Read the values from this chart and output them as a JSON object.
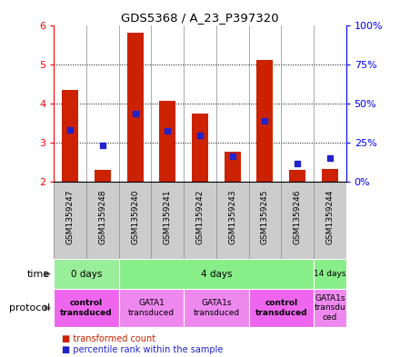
{
  "title": "GDS5368 / A_23_P397320",
  "samples": [
    "GSM1359247",
    "GSM1359248",
    "GSM1359240",
    "GSM1359241",
    "GSM1359242",
    "GSM1359243",
    "GSM1359245",
    "GSM1359246",
    "GSM1359244"
  ],
  "transformed_counts": [
    4.35,
    2.32,
    5.8,
    4.08,
    3.75,
    2.78,
    5.1,
    2.31,
    2.33
  ],
  "bar_base": 2.0,
  "percentile_values": [
    3.32,
    2.93,
    3.74,
    3.3,
    3.19,
    2.65,
    3.55,
    2.48,
    2.62
  ],
  "ylim_left": [
    2,
    6
  ],
  "ylim_right": [
    0,
    100
  ],
  "yticks_left": [
    2,
    3,
    4,
    5,
    6
  ],
  "yticks_right": [
    0,
    25,
    50,
    75,
    100
  ],
  "ytick_labels_right": [
    "0%",
    "25%",
    "50%",
    "75%",
    "100%"
  ],
  "bar_color": "#cc2200",
  "percentile_color": "#2222cc",
  "time_groups": [
    {
      "label": "0 days",
      "start": 0,
      "end": 2,
      "color": "#99ee99"
    },
    {
      "label": "4 days",
      "start": 2,
      "end": 8,
      "color": "#88ee88"
    },
    {
      "label": "14 days",
      "start": 8,
      "end": 9,
      "color": "#88ee88"
    }
  ],
  "protocol_groups": [
    {
      "label": "control\ntransduced",
      "start": 0,
      "end": 2,
      "color": "#ee66ee",
      "bold": true
    },
    {
      "label": "GATA1\ntransduced",
      "start": 2,
      "end": 4,
      "color": "#ee88ee",
      "bold": false
    },
    {
      "label": "GATA1s\ntransduced",
      "start": 4,
      "end": 6,
      "color": "#ee88ee",
      "bold": false
    },
    {
      "label": "control\ntransduced",
      "start": 6,
      "end": 8,
      "color": "#ee66ee",
      "bold": true
    },
    {
      "label": "GATA1s\ntransdu\nced",
      "start": 8,
      "end": 9,
      "color": "#ee88ee",
      "bold": false
    }
  ],
  "bg_color": "#ffffff",
  "sample_bg_color": "#cccccc",
  "chart_bg_color": "#ffffff"
}
